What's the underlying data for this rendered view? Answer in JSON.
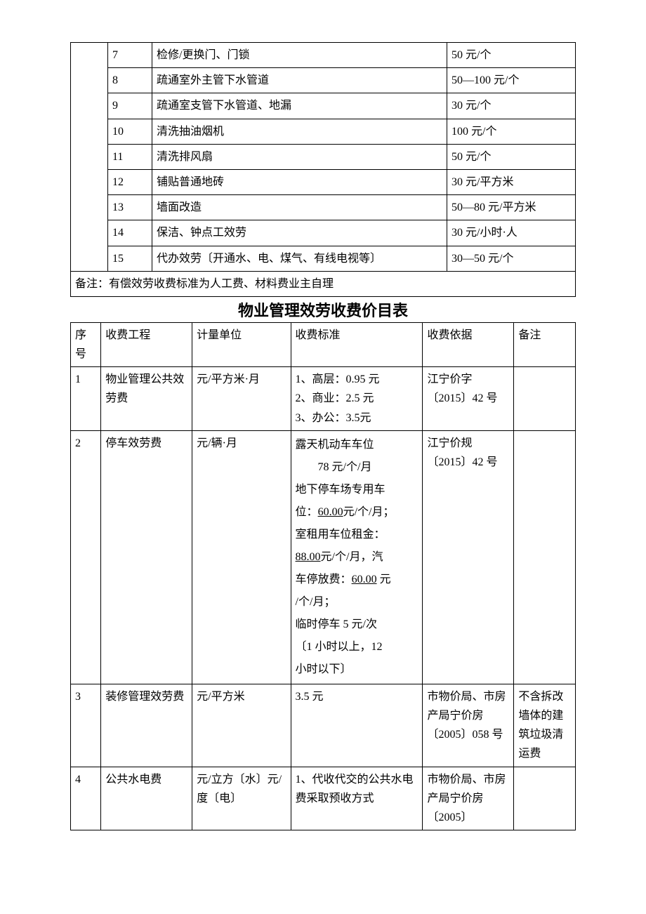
{
  "table1": {
    "rows": [
      {
        "idx": "7",
        "desc": "检修/更换门、门锁",
        "price": "50 元/个"
      },
      {
        "idx": "8",
        "desc": "疏通室外主管下水管道",
        "price": "50—100 元/个"
      },
      {
        "idx": "9",
        "desc": "疏通室支管下水管道、地漏",
        "price": "30 元/个"
      },
      {
        "idx": "10",
        "desc": "清洗抽油烟机",
        "price": "100 元/个"
      },
      {
        "idx": "11",
        "desc": "清洗排风扇",
        "price": "50 元/个"
      },
      {
        "idx": "12",
        "desc": "铺贴普通地砖",
        "price": "30 元/平方米"
      },
      {
        "idx": "13",
        "desc": "墙面改造",
        "price": "50—80 元/平方米"
      },
      {
        "idx": "14",
        "desc": "保洁、钟点工效劳",
        "price": "30 元/小时·人"
      },
      {
        "idx": "15",
        "desc": "代办效劳〔开通水、电、煤气、有线电视等〕",
        "price": "30—50 元/个"
      }
    ],
    "note": "备注：有偿效劳收费标准为人工费、材料费业主自理"
  },
  "title": "物业管理效劳收费价目表",
  "table2": {
    "headers": [
      "序号",
      "收费工程",
      "计量单位",
      "收费标准",
      "收费依据",
      "备注"
    ],
    "row1": {
      "idx": "1",
      "item": "物业管理公共效劳费",
      "unit": "元/平方米·月",
      "std1": "1、高层：0.95 元",
      "std2": "2、商业：2.5 元",
      "std3": "3、办公：3.5元",
      "basis": "江宁价字〔2015〕42 号",
      "note": ""
    },
    "row2": {
      "idx": "2",
      "item": "停车效劳费",
      "unit": "元/辆·月",
      "std_l1": "露天机动车车位",
      "std_l2": "78 元/个/月",
      "std_l3": "地下停车场专用车",
      "std_l4a": "位：",
      "std_l4b": "60.00",
      "std_l4c": "元/个/月；",
      "std_l5": "室租用车位租金：",
      "std_l6a": "88.00",
      "std_l6b": "元/个/月，汽",
      "std_l7a": "车停放费：",
      "std_l7b": "60.00",
      "std_l7c": " 元",
      "std_l8": "/个/月；",
      "std_l9": "临时停车 5 元/次",
      "std_l10": "〔1 小时以上，12",
      "std_l11": "小时以下〕",
      "basis": "江宁价规〔2015〕42 号",
      "note": ""
    },
    "row3": {
      "idx": "3",
      "item": "装修管理效劳费",
      "unit": "元/平方米",
      "std": "3.5 元",
      "basis": "市物价局、市房产局宁价房〔2005〕058 号",
      "note": "不含拆改墙体的建筑垃圾清运费"
    },
    "row4": {
      "idx": "4",
      "item": "公共水电费",
      "unit": "元/立方〔水〕元/度〔电〕",
      "std": "1、代收代交的公共水电费采取预收方式",
      "basis": "市物价局、市房产局宁价房〔2005〕",
      "note": ""
    }
  }
}
